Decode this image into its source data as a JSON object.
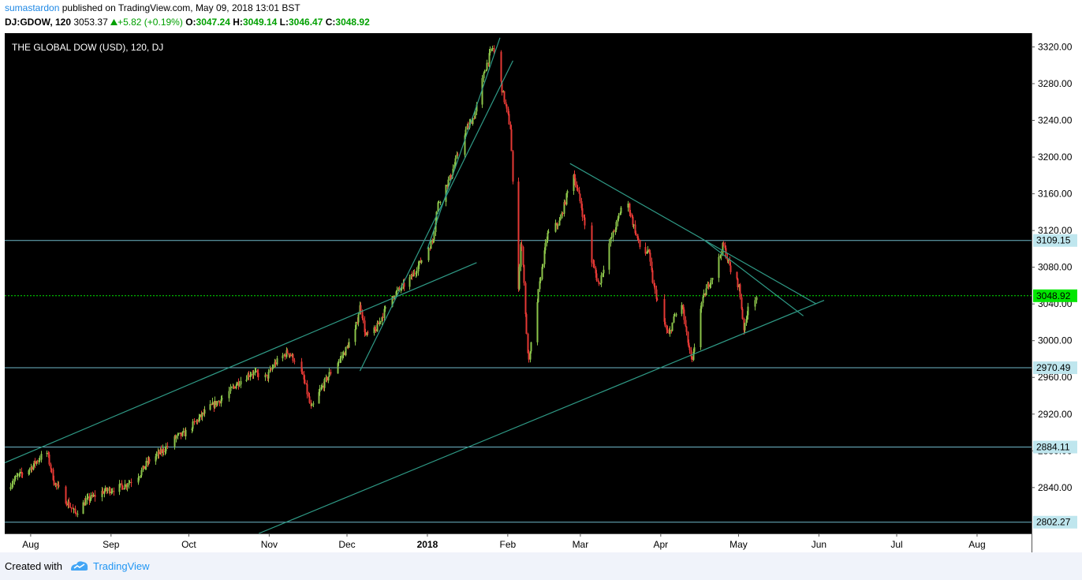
{
  "header": {
    "author": "sumastardon",
    "published": "published on TradingView.com, May 09, 2018 13:01 BST",
    "symbol": "DJ:GDOW, 120",
    "last": "3053.37",
    "change_icon": "triangle-up-icon",
    "change": "+5.82 (+0.19%)",
    "o_label": "O:",
    "o_value": "3047.24",
    "h_label": "H:",
    "h_value": "3049.14",
    "l_label": "L:",
    "l_value": "3046.47",
    "c_label": "C:",
    "c_value": "3048.92"
  },
  "footer": {
    "created_with": "Created with",
    "brand": "TradingView"
  },
  "colors": {
    "background": "#000000",
    "up_candle": "#8bc34a",
    "down_candle": "#e53935",
    "hline": "#6fb7c9",
    "trendline": "#2f9a86",
    "current_price": "#00e600",
    "axis_text": "#000000",
    "axis_label_bg": "#bfe6ee"
  },
  "chart_data": {
    "type": "candlestick",
    "title": "THE GLOBAL DOW (USD), 120, DJ",
    "ylim": [
      2790,
      3335
    ],
    "y_ticks": [
      2840,
      2880,
      2920,
      2960,
      3000,
      3040,
      3080,
      3120,
      3160,
      3200,
      3240,
      3280,
      3320
    ],
    "x_start": "2017-07-22",
    "x_end": "2018-08-22",
    "x_ticks": [
      {
        "label": "Aug",
        "date": "2017-08-01"
      },
      {
        "label": "Sep",
        "date": "2017-09-01"
      },
      {
        "label": "Oct",
        "date": "2017-10-01"
      },
      {
        "label": "Nov",
        "date": "2017-11-01"
      },
      {
        "label": "Dec",
        "date": "2017-12-01"
      },
      {
        "label": "2018",
        "date": "2018-01-01",
        "bold": true
      },
      {
        "label": "Feb",
        "date": "2018-02-01"
      },
      {
        "label": "Mar",
        "date": "2018-03-01"
      },
      {
        "label": "Apr",
        "date": "2018-04-01"
      },
      {
        "label": "May",
        "date": "2018-05-01"
      },
      {
        "label": "Jun",
        "date": "2018-06-01"
      },
      {
        "label": "Jul",
        "date": "2018-07-01"
      },
      {
        "label": "Aug",
        "date": "2018-08-01"
      }
    ],
    "horizontal_lines": [
      {
        "value": 3109.15,
        "label": "3109.15",
        "kind": "support"
      },
      {
        "value": 2970.49,
        "label": "2970.49",
        "kind": "support"
      },
      {
        "value": 2884.11,
        "label": "2884.11",
        "kind": "support"
      },
      {
        "value": 2802.27,
        "label": "2802.27",
        "kind": "support"
      },
      {
        "value": 3048.92,
        "label": "3048.92",
        "kind": "current"
      }
    ],
    "trendlines": [
      {
        "from": {
          "date": "2017-07-22",
          "price": 2867
        },
        "to": {
          "date": "2018-01-20",
          "price": 3085
        }
      },
      {
        "from": {
          "date": "2017-12-06",
          "price": 2967
        },
        "to": {
          "date": "2018-02-03",
          "price": 3305
        }
      },
      {
        "from": {
          "date": "2018-01-01",
          "price": 3100
        },
        "to": {
          "date": "2018-01-29",
          "price": 3330
        }
      },
      {
        "from": {
          "date": "2017-10-28",
          "price": 2790
        },
        "to": {
          "date": "2018-06-03",
          "price": 3044
        }
      },
      {
        "from": {
          "date": "2018-02-25",
          "price": 3193
        },
        "to": {
          "date": "2018-05-31",
          "price": 3040
        }
      },
      {
        "from": {
          "date": "2018-04-18",
          "price": 3109
        },
        "to": {
          "date": "2018-05-26",
          "price": 3027
        }
      }
    ],
    "price_path": [
      [
        "2017-07-22",
        2838
      ],
      [
        "2017-07-26",
        2850
      ],
      [
        "2017-08-01",
        2862
      ],
      [
        "2017-08-07",
        2880
      ],
      [
        "2017-08-10",
        2845
      ],
      [
        "2017-08-14",
        2828
      ],
      [
        "2017-08-18",
        2812
      ],
      [
        "2017-08-22",
        2825
      ],
      [
        "2017-08-28",
        2835
      ],
      [
        "2017-09-01",
        2838
      ],
      [
        "2017-09-06",
        2842
      ],
      [
        "2017-09-12",
        2855
      ],
      [
        "2017-09-15",
        2868
      ],
      [
        "2017-09-20",
        2878
      ],
      [
        "2017-09-26",
        2895
      ],
      [
        "2017-09-29",
        2898
      ],
      [
        "2017-10-03",
        2910
      ],
      [
        "2017-10-08",
        2925
      ],
      [
        "2017-10-15",
        2940
      ],
      [
        "2017-10-20",
        2955
      ],
      [
        "2017-10-25",
        2965
      ],
      [
        "2017-10-31",
        2960
      ],
      [
        "2017-11-03",
        2975
      ],
      [
        "2017-11-08",
        2988
      ],
      [
        "2017-11-12",
        2975
      ],
      [
        "2017-11-15",
        2950
      ],
      [
        "2017-11-17",
        2925
      ],
      [
        "2017-11-21",
        2948
      ],
      [
        "2017-11-25",
        2968
      ],
      [
        "2017-11-30",
        2988
      ],
      [
        "2017-12-04",
        3010
      ],
      [
        "2017-12-06",
        3040
      ],
      [
        "2017-12-08",
        3005
      ],
      [
        "2017-12-12",
        3012
      ],
      [
        "2017-12-18",
        3048
      ],
      [
        "2017-12-22",
        3058
      ],
      [
        "2017-12-26",
        3070
      ],
      [
        "2017-12-29",
        3085
      ],
      [
        "2018-01-03",
        3110
      ],
      [
        "2018-01-05",
        3150
      ],
      [
        "2018-01-10",
        3180
      ],
      [
        "2018-01-15",
        3225
      ],
      [
        "2018-01-19",
        3245
      ],
      [
        "2018-01-23",
        3295
      ],
      [
        "2018-01-26",
        3320
      ],
      [
        "2018-01-28",
        3298
      ],
      [
        "2018-01-30",
        3270
      ],
      [
        "2018-02-02",
        3230
      ],
      [
        "2018-02-03",
        3150
      ],
      [
        "2018-02-05",
        3060
      ],
      [
        "2018-02-06",
        3110
      ],
      [
        "2018-02-07",
        3080
      ],
      [
        "2018-02-08",
        3010
      ],
      [
        "2018-02-09",
        2975
      ],
      [
        "2018-02-13",
        3060
      ],
      [
        "2018-02-16",
        3115
      ],
      [
        "2018-02-21",
        3130
      ],
      [
        "2018-02-26",
        3185
      ],
      [
        "2018-03-01",
        3150
      ],
      [
        "2018-03-05",
        3090
      ],
      [
        "2018-03-08",
        3060
      ],
      [
        "2018-03-12",
        3105
      ],
      [
        "2018-03-15",
        3128
      ],
      [
        "2018-03-18",
        3160
      ],
      [
        "2018-03-22",
        3120
      ],
      [
        "2018-03-25",
        3090
      ],
      [
        "2018-03-27",
        3100
      ],
      [
        "2018-03-29",
        3060
      ],
      [
        "2018-04-02",
        3020
      ],
      [
        "2018-04-04",
        3005
      ],
      [
        "2018-04-06",
        3025
      ],
      [
        "2018-04-09",
        3040
      ],
      [
        "2018-04-11",
        3002
      ],
      [
        "2018-04-13",
        2975
      ],
      [
        "2018-04-16",
        3035
      ],
      [
        "2018-04-19",
        3060
      ],
      [
        "2018-04-23",
        3085
      ],
      [
        "2018-04-25",
        3105
      ],
      [
        "2018-04-28",
        3075
      ],
      [
        "2018-05-01",
        3060
      ],
      [
        "2018-05-03",
        3010
      ],
      [
        "2018-05-05",
        3045
      ],
      [
        "2018-05-08",
        3048
      ]
    ]
  }
}
